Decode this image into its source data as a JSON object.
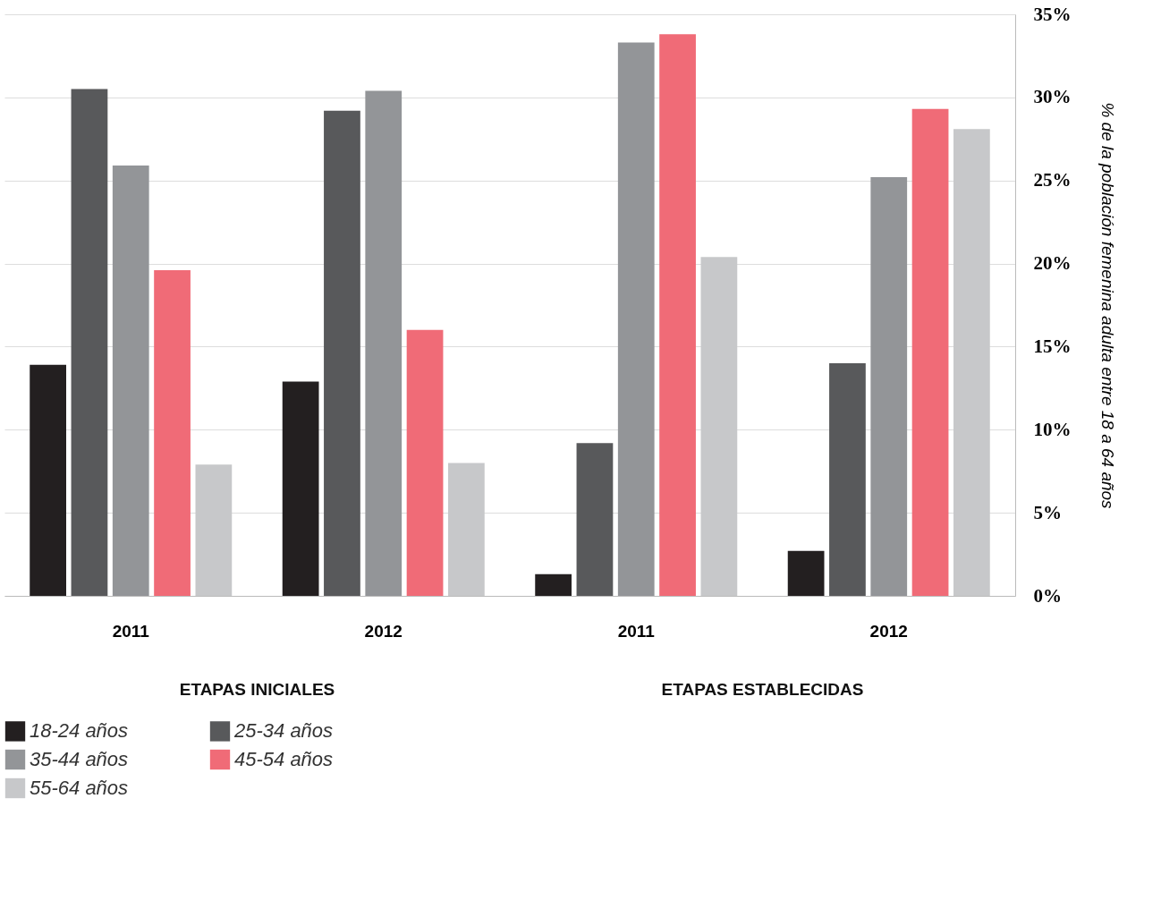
{
  "chart_data": {
    "type": "bar",
    "categories": [
      "2011",
      "2012",
      "2011",
      "2012"
    ],
    "series": [
      {
        "name": "18-24 años",
        "color": "#231f20",
        "values": [
          13.9,
          12.9,
          1.3,
          2.7
        ]
      },
      {
        "name": "25-34 años",
        "color": "#58595b",
        "values": [
          30.5,
          29.2,
          9.2,
          14.0
        ]
      },
      {
        "name": "35-44 años",
        "color": "#939598",
        "values": [
          25.9,
          30.4,
          33.3,
          25.2
        ]
      },
      {
        "name": "45-54 años",
        "color": "#f06b77",
        "values": [
          19.6,
          16.0,
          33.8,
          29.3
        ]
      },
      {
        "name": "55-64 años",
        "color": "#c7c8ca",
        "values": [
          7.9,
          8.0,
          20.4,
          28.1
        ]
      }
    ],
    "ylabel": "% de la población femenina adulta entre 18 a 64 años",
    "ylim": [
      0,
      35
    ],
    "yticks": [
      {
        "value": 0,
        "label": "0%"
      },
      {
        "value": 5,
        "label": "5%"
      },
      {
        "value": 10,
        "label": "10%"
      },
      {
        "value": 15,
        "label": "15%"
      },
      {
        "value": 20,
        "label": "20%"
      },
      {
        "value": 25,
        "label": "25%"
      },
      {
        "value": 30,
        "label": "30%"
      },
      {
        "value": 35,
        "label": "35%"
      }
    ],
    "annotations": [
      "ETAPAS INICIALES",
      "ETAPAS ESTABLECIDAS"
    ],
    "grid": "y",
    "legend": "bottom"
  }
}
